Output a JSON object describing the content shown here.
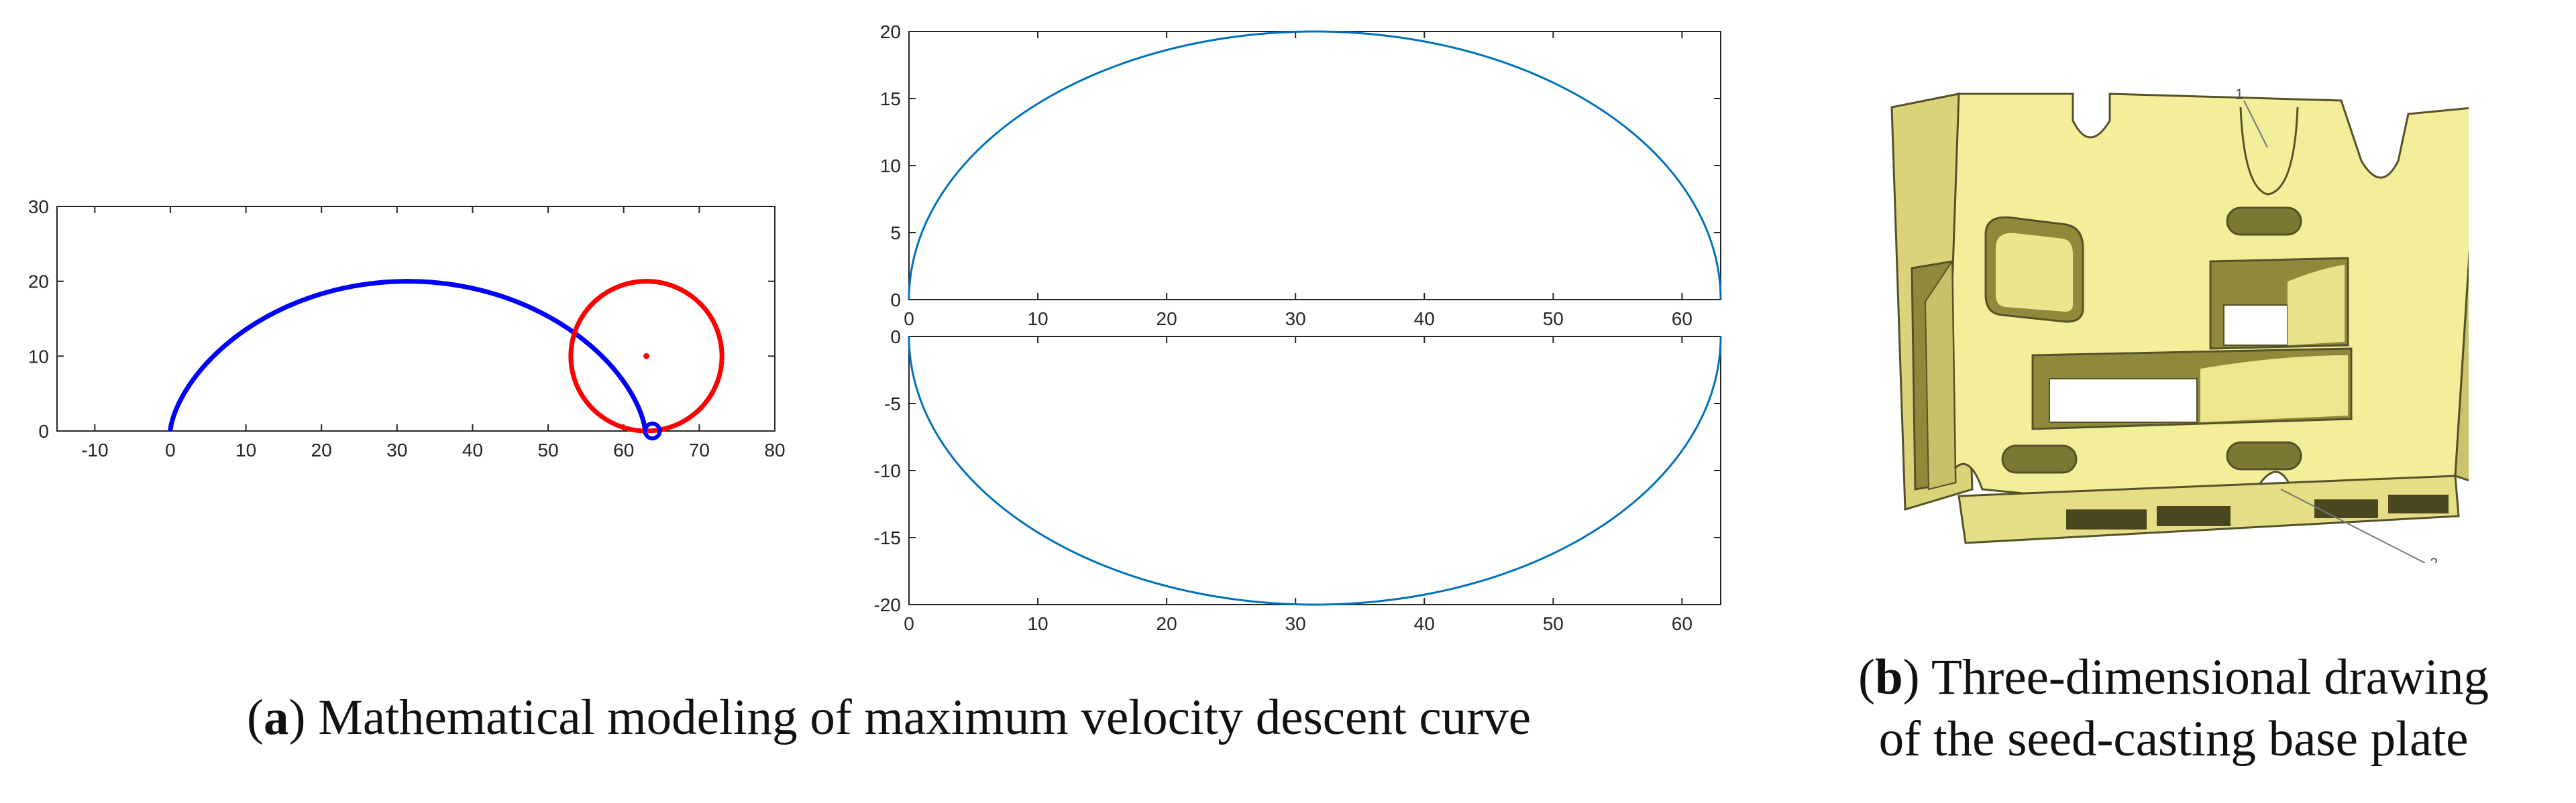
{
  "chart_data": [
    {
      "type": "line",
      "xlim": [
        -15,
        80
      ],
      "ylim": [
        0,
        30
      ],
      "xticks": [
        -10,
        0,
        10,
        20,
        30,
        40,
        50,
        60,
        70,
        80
      ],
      "yticks": [
        0,
        10,
        20,
        30
      ],
      "grid": false,
      "series": [
        {
          "color": "#0000ff",
          "kind": "cycloid-arc",
          "x": [
            0,
            10,
            20,
            32,
            44,
            54,
            60,
            63.8
          ],
          "y": [
            0,
            13,
            18.8,
            20,
            18.5,
            12.5,
            6,
            0
          ]
        },
        {
          "color": "#ff0000",
          "kind": "circle",
          "center": [
            63,
            10
          ],
          "radius": 10
        },
        {
          "color": "#ff0000",
          "kind": "point",
          "x": [
            63
          ],
          "y": [
            10
          ]
        },
        {
          "color": "#0000ff",
          "kind": "point",
          "x": [
            63.8
          ],
          "y": [
            0
          ]
        }
      ]
    },
    {
      "type": "line",
      "xlim": [
        0,
        63
      ],
      "ylim": [
        0,
        20
      ],
      "xticks": [
        0,
        10,
        20,
        30,
        40,
        50,
        60
      ],
      "yticks": [
        0,
        5,
        10,
        15,
        20
      ],
      "grid": false,
      "series": [
        {
          "color": "#0072bd",
          "x": [
            0,
            10,
            20,
            31.4,
            43,
            53,
            63
          ],
          "y": [
            0,
            14.6,
            19.1,
            20,
            19.0,
            14.3,
            0
          ]
        }
      ]
    },
    {
      "type": "line",
      "xlim": [
        0,
        63
      ],
      "ylim": [
        -20,
        0
      ],
      "xticks": [
        0,
        10,
        20,
        30,
        40,
        50,
        60
      ],
      "yticks": [
        -20,
        -15,
        -10,
        -5,
        0
      ],
      "grid": false,
      "series": [
        {
          "color": "#0072bd",
          "x": [
            0,
            10,
            20,
            31.4,
            43,
            53,
            63
          ],
          "y": [
            0,
            -14.6,
            -19.1,
            -20,
            -19.0,
            -14.3,
            0
          ]
        }
      ]
    }
  ],
  "drawing": {
    "label_1": "1",
    "label_2": "2",
    "body_color": "#f3ee9a",
    "shadow_color": "#8f8a3a",
    "edge_color": "#55522a"
  },
  "captions": {
    "a_letter": "a",
    "a_text": " Mathematical modeling of maximum velocity descent curve",
    "b_letter": "b",
    "b_text_line1": " Three-dimensional drawing",
    "b_text_line2": "of the seed-casting base plate"
  }
}
